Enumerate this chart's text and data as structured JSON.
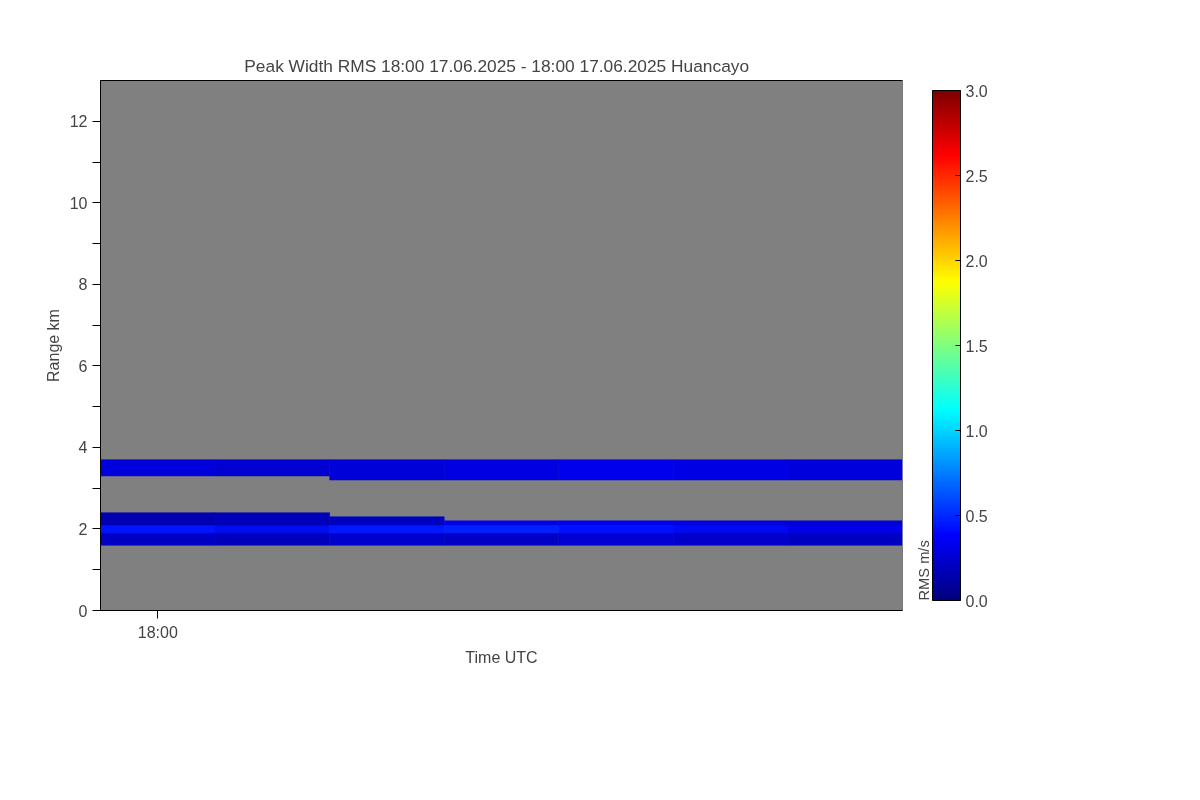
{
  "chart_data": {
    "type": "bar",
    "title": "Peak Width RMS   18:00 17.06.2025 - 18:00 17.06.2025 Huancayo",
    "xlabel": "Time UTC",
    "ylabel": "Range km",
    "clabel": "RMS m/s",
    "categories": [
      "18:00",
      null,
      null,
      null,
      null,
      null,
      null
    ],
    "ylim": [
      0,
      13
    ],
    "yticks": [
      0,
      {
        "value": 1,
        "label": null
      },
      2,
      {
        "value": 3,
        "label": null
      },
      4,
      {
        "value": 5,
        "label": null
      },
      6,
      {
        "value": 7,
        "label": null
      },
      8,
      {
        "value": 9,
        "label": null
      },
      10,
      {
        "value": 11,
        "label": null
      },
      12
    ],
    "clim": [
      0,
      3
    ],
    "cticks": [
      {
        "value": 0,
        "label": "0.0"
      },
      {
        "value": 0.5,
        "label": "0.5"
      },
      {
        "value": 1,
        "label": "1.0"
      },
      {
        "value": 1.5,
        "label": "1.5"
      },
      {
        "value": 2,
        "label": "2.0"
      },
      {
        "value": 2.5,
        "label": "2.5"
      },
      {
        "value": 3,
        "label": "3.0"
      }
    ],
    "grid": false,
    "series": [
      {
        "colors": [
          "#0000c4",
          "#0000bc",
          "#0000cc",
          "#0000c6",
          "#0000d2",
          "#0000ca",
          "#0000c0"
        ],
        "base": [
          1.6,
          1.6,
          1.6,
          1.6,
          1.6,
          1.6,
          1.6
        ],
        "values": [
          0.3,
          0.3,
          0.3,
          0.3,
          0.3,
          0.3,
          0.3
        ]
      },
      {
        "colors": [
          "#0014ff",
          "#000cf0",
          "#0018ff",
          "#0020ff",
          "#0010ff",
          "#0008f0",
          "#0000e8"
        ],
        "base": [
          1.9,
          1.9,
          1.9,
          1.9,
          1.9,
          1.9,
          1.9
        ],
        "values": [
          0.2,
          0.2,
          0.2,
          0.2,
          0.2,
          0.2,
          0.2
        ]
      },
      {
        "colors": [
          "#0000b0",
          "#0000b8",
          "#0000c0",
          "#0000e8",
          "#0000f0",
          "#0000e0",
          "#0000d8"
        ],
        "base": [
          2.1,
          2.1,
          2.1,
          2.1,
          2.1,
          2.1,
          2.1
        ],
        "values": [
          0.3,
          0.3,
          0.2,
          0.1,
          0.1,
          0.1,
          0.1
        ]
      },
      {
        "colors": [
          "#0000dc",
          "#0000d2",
          "#0000d8",
          "#0000e0",
          "#0000ec",
          "#0000e4",
          "#0000dc"
        ],
        "base": [
          3.3,
          3.3,
          3.2,
          3.2,
          3.2,
          3.2,
          3.2
        ],
        "values": [
          0.4,
          0.4,
          0.5,
          0.5,
          0.5,
          0.5,
          0.5
        ]
      }
    ]
  }
}
